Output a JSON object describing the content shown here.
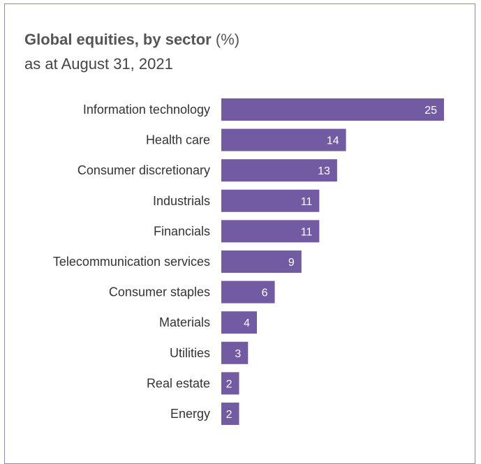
{
  "title": {
    "bold": "Global equities, by sector",
    "unit": "(%)",
    "subtitle": "as at August 31, 2021"
  },
  "colors": {
    "bar": "#735ba3",
    "border": "#8c88a6"
  },
  "chart_data": {
    "type": "bar",
    "orientation": "horizontal",
    "title": "Global equities, by sector (%)",
    "subtitle": "as at August 31, 2021",
    "categories": [
      "Information technology",
      "Health care",
      "Consumer discretionary",
      "Industrials",
      "Financials",
      "Telecommunication services",
      "Consumer staples",
      "Materials",
      "Utilities",
      "Real estate",
      "Energy"
    ],
    "values": [
      25,
      14,
      13,
      11,
      11,
      9,
      6,
      4,
      3,
      2,
      2
    ],
    "data_labels": true,
    "grid": false,
    "legend": "none"
  }
}
